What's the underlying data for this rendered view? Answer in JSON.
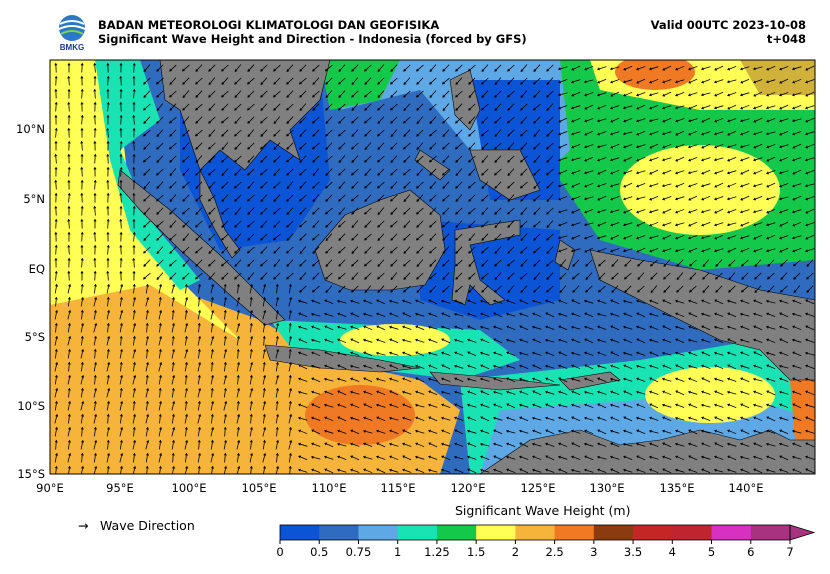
{
  "header": {
    "agency": "BADAN METEOROLOGI KLIMATOLOGI DAN GEOFISIKA",
    "product": "Significant Wave Height and Direction - Indonesia (forced by GFS)",
    "valid": "Valid 00UTC 2023-10-08",
    "lead": "t+048",
    "logo_text": "BMKG"
  },
  "axes": {
    "lon_ticks": [
      "90°E",
      "95°E",
      "100°E",
      "105°E",
      "110°E",
      "115°E",
      "120°E",
      "125°E",
      "130°E",
      "135°E",
      "140°E"
    ],
    "lat_ticks": [
      "10°N",
      "5°N",
      "EQ",
      "5°S",
      "10°S",
      "15°S"
    ]
  },
  "legend": {
    "arrow_glyph": "→",
    "direction_label": "Wave Direction",
    "colorbar_title": "Significant Wave Height (m)",
    "colorbar_ticks": [
      "0",
      "0.5",
      "0.75",
      "1",
      "1.25",
      "1.5",
      "2",
      "2.5",
      "3",
      "3.5",
      "4",
      "5",
      "6",
      "7"
    ],
    "colorbar_colors": [
      "#0b54d6",
      "#2f6cc0",
      "#5fa8e6",
      "#19e3b3",
      "#14c84a",
      "#ffff55",
      "#f7b43a",
      "#f07a24",
      "#8a3b10",
      "#c42626",
      "#c0242e",
      "#d830c0",
      "#a8327f"
    ]
  },
  "colors": {
    "land": "#808080",
    "calm": "#0b54d6",
    "moderate": "#14c84a",
    "high": "#f7b43a"
  }
}
